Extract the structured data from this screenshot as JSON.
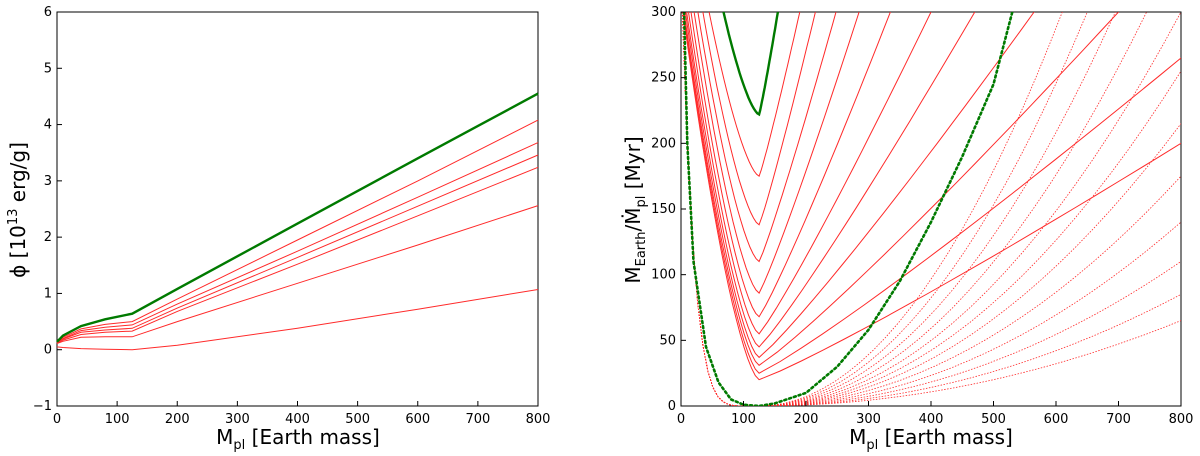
{
  "chart_data": [
    {
      "type": "line",
      "xlabel": "M",
      "xlabel_sub": "pl",
      "xlabel_suffix": " [Earth mass]",
      "ylabel": "ϕ [10",
      "ylabel_sup": "13",
      "ylabel_suffix": " erg/g]",
      "xlim": [
        0,
        800
      ],
      "ylim": [
        -1,
        6
      ],
      "xticks": [
        "0",
        "100",
        "200",
        "300",
        "400",
        "500",
        "600",
        "700",
        "800"
      ],
      "yticks": [
        "−1",
        "0",
        "1",
        "2",
        "3",
        "4",
        "5",
        "6"
      ],
      "grid": false,
      "colors": {
        "highlight": "#007a00",
        "curves": "#ff2a2a"
      },
      "series": [
        {
          "style": "highlight",
          "values": [
            [
              0,
              0.14
            ],
            [
              10,
              0.25
            ],
            [
              40,
              0.42
            ],
            [
              80,
              0.54
            ],
            [
              125,
              0.64
            ],
            [
              200,
              1.08
            ],
            [
              400,
              2.24
            ],
            [
              600,
              3.4
            ],
            [
              800,
              4.55
            ]
          ]
        },
        {
          "style": "solid",
          "values": [
            [
              0,
              0.12
            ],
            [
              10,
              0.22
            ],
            [
              40,
              0.37
            ],
            [
              80,
              0.45
            ],
            [
              125,
              0.5
            ],
            [
              200,
              0.9
            ],
            [
              400,
              1.95
            ],
            [
              600,
              3.0
            ],
            [
              800,
              4.08
            ]
          ]
        },
        {
          "style": "solid",
          "values": [
            [
              0,
              0.12
            ],
            [
              10,
              0.2
            ],
            [
              40,
              0.34
            ],
            [
              80,
              0.4
            ],
            [
              125,
              0.44
            ],
            [
              200,
              0.81
            ],
            [
              400,
              1.75
            ],
            [
              600,
              2.71
            ],
            [
              800,
              3.68
            ]
          ]
        },
        {
          "style": "solid",
          "values": [
            [
              0,
              0.12
            ],
            [
              10,
              0.19
            ],
            [
              40,
              0.31
            ],
            [
              80,
              0.35
            ],
            [
              125,
              0.38
            ],
            [
              200,
              0.74
            ],
            [
              400,
              1.64
            ],
            [
              600,
              2.55
            ],
            [
              800,
              3.46
            ]
          ]
        },
        {
          "style": "solid",
          "values": [
            [
              0,
              0.11
            ],
            [
              10,
              0.17
            ],
            [
              40,
              0.27
            ],
            [
              80,
              0.31
            ],
            [
              125,
              0.33
            ],
            [
              200,
              0.68
            ],
            [
              400,
              1.52
            ],
            [
              600,
              2.38
            ],
            [
              800,
              3.24
            ]
          ]
        },
        {
          "style": "solid",
          "values": [
            [
              0,
              0.11
            ],
            [
              10,
              0.15
            ],
            [
              40,
              0.22
            ],
            [
              80,
              0.23
            ],
            [
              125,
              0.23
            ],
            [
              200,
              0.5
            ],
            [
              400,
              1.18
            ],
            [
              600,
              1.86
            ],
            [
              800,
              2.56
            ]
          ]
        },
        {
          "style": "solid",
          "values": [
            [
              0,
              0.05
            ],
            [
              10,
              0.04
            ],
            [
              40,
              0.02
            ],
            [
              80,
              0.01
            ],
            [
              125,
              0.0
            ],
            [
              200,
              0.08
            ],
            [
              400,
              0.38
            ],
            [
              600,
              0.72
            ],
            [
              800,
              1.07
            ]
          ]
        }
      ]
    },
    {
      "type": "line",
      "xlabel": "M",
      "xlabel_sub": "pl",
      "xlabel_suffix": " [Earth mass]",
      "ylabel": "M",
      "ylabel_sub": "Earth",
      "ylabel_mid": "/Ṁ",
      "ylabel_sub2": "pl",
      "ylabel_suffix": " [Myr]",
      "xlim": [
        0,
        800
      ],
      "ylim": [
        0,
        300
      ],
      "xticks": [
        "0",
        "100",
        "200",
        "300",
        "400",
        "500",
        "600",
        "700",
        "800"
      ],
      "yticks": [
        "0",
        "50",
        "100",
        "150",
        "200",
        "250",
        "300"
      ],
      "grid": false,
      "colors": {
        "highlight": "#007a00",
        "curves": "#ff2a2a"
      },
      "v_curves": {
        "vertex_x": 125,
        "highlight": {
          "vertex_y": 222,
          "left_top_x": 68,
          "right_top_x": 155
        },
        "solid": [
          {
            "vertex_y": 175,
            "left_top_x": 45,
            "right_top_x": 190
          },
          {
            "vertex_y": 138,
            "left_top_x": 35,
            "right_top_x": 215
          },
          {
            "vertex_y": 110,
            "left_top_x": 27,
            "right_top_x": 248
          },
          {
            "vertex_y": 86,
            "left_top_x": 21,
            "right_top_x": 285
          },
          {
            "vertex_y": 68,
            "left_top_x": 16,
            "right_top_x": 335
          },
          {
            "vertex_y": 55,
            "left_top_x": 12,
            "right_top_x": 400
          },
          {
            "vertex_y": 45,
            "left_top_x": 9,
            "right_top_x": 470
          },
          {
            "vertex_y": 37,
            "left_top_x": 7,
            "right_top_x": 565
          },
          {
            "vertex_y": 31,
            "left_top_x": 5,
            "right_top_x": 700
          },
          {
            "vertex_y": 25,
            "left_top_x": 4,
            "right_x_at_800": 800,
            "right_y_at_800": 265
          },
          {
            "vertex_y": 20,
            "left_top_x": 3,
            "right_x_at_800": 800,
            "right_y_at_800": 200
          }
        ]
      },
      "u_curves_dotted": [
        {
          "vertex_x": 125,
          "right_top_x": 610
        },
        {
          "vertex_x": 125,
          "right_top_x": 650
        },
        {
          "vertex_x": 125,
          "right_top_x": 695
        },
        {
          "vertex_x": 125,
          "right_top_x": 745
        },
        {
          "vertex_x": 125,
          "right_top_x": 800
        },
        {
          "vertex_x": 125,
          "right_x_at_800": 800,
          "right_y_at_800": 255
        },
        {
          "vertex_x": 125,
          "right_x_at_800": 800,
          "right_y_at_800": 215
        },
        {
          "vertex_x": 125,
          "right_x_at_800": 800,
          "right_y_at_800": 175
        },
        {
          "vertex_x": 125,
          "right_x_at_800": 800,
          "right_y_at_800": 140
        },
        {
          "vertex_x": 125,
          "right_x_at_800": 800,
          "right_y_at_800": 110
        },
        {
          "vertex_x": 125,
          "right_x_at_800": 800,
          "right_y_at_800": 85
        },
        {
          "vertex_x": 125,
          "right_x_at_800": 800,
          "right_y_at_800": 65
        }
      ],
      "green_dotted_curve": [
        [
          5,
          300
        ],
        [
          10,
          200
        ],
        [
          20,
          110
        ],
        [
          40,
          45
        ],
        [
          60,
          18
        ],
        [
          80,
          5
        ],
        [
          100,
          1
        ],
        [
          125,
          0
        ],
        [
          150,
          2
        ],
        [
          200,
          10
        ],
        [
          250,
          30
        ],
        [
          300,
          58
        ],
        [
          350,
          95
        ],
        [
          400,
          140
        ],
        [
          450,
          190
        ],
        [
          500,
          245
        ],
        [
          530,
          300
        ]
      ]
    }
  ]
}
